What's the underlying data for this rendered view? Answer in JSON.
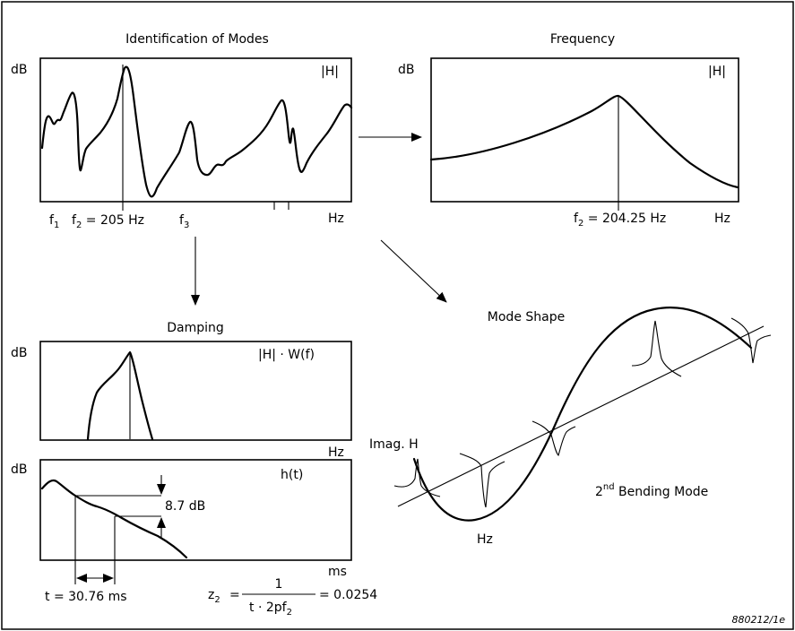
{
  "panels": {
    "identification": {
      "title": "Identification of Modes",
      "y_label": "dB",
      "top_right_label": "|H|",
      "x_unit": "Hz",
      "f1_label": "f",
      "f1_sub": "1",
      "f2_label_prefix": "f",
      "f2_sub": "2",
      "f2_value": " = 205 Hz",
      "f3_label": "f",
      "f3_sub": "3"
    },
    "frequency": {
      "title": "Frequency",
      "y_label": "dB",
      "top_right_label": "|H|",
      "x_unit": "Hz",
      "marker_prefix": "f",
      "marker_sub": "2",
      "marker_value": " = 204.25 Hz"
    },
    "damping": {
      "title": "Damping",
      "top": {
        "y_label": "dB",
        "top_right_label": "|H| · W(f)",
        "x_unit": "Hz"
      },
      "bottom": {
        "y_label": "dB",
        "top_right_label": "h(t)",
        "x_unit": "ms",
        "decay_label": "8.7 dB",
        "time_label": "t = 30.76 ms"
      },
      "formula": {
        "lhs_main": "z",
        "lhs_sub": "2",
        "equals": "=",
        "numerator": "1",
        "denominator_main": "t · 2pf",
        "denominator_sub": "2",
        "result": "= 0.0254"
      }
    },
    "mode_shape": {
      "title": "Mode Shape",
      "imag_label": "Imag. H",
      "hz_label": "Hz",
      "mode_label_main": "2",
      "mode_label_sup": "nd",
      "mode_label_rest": " Bending Mode"
    }
  },
  "figure_ref": "880212/1e"
}
